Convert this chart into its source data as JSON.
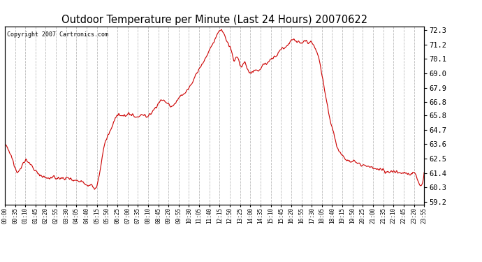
{
  "title": "Outdoor Temperature per Minute (Last 24 Hours) 20070622",
  "copyright": "Copyright 2007 Cartronics.com",
  "line_color": "#cc0000",
  "bg_color": "#ffffff",
  "plot_bg_color": "#ffffff",
  "grid_color": "#bbbbbb",
  "title_fontsize": 11,
  "yticks": [
    59.2,
    60.3,
    61.4,
    62.5,
    63.6,
    64.7,
    65.8,
    66.8,
    67.9,
    69.0,
    70.1,
    71.2,
    72.3
  ],
  "ylim": [
    59.0,
    72.6
  ],
  "xtick_labels": [
    "00:00",
    "00:35",
    "01:10",
    "01:45",
    "02:20",
    "02:55",
    "03:30",
    "04:05",
    "04:40",
    "05:15",
    "05:50",
    "06:25",
    "07:00",
    "07:35",
    "08:10",
    "08:45",
    "09:20",
    "09:55",
    "10:30",
    "11:05",
    "11:40",
    "12:15",
    "12:50",
    "13:25",
    "14:00",
    "14:35",
    "15:10",
    "15:45",
    "16:20",
    "16:55",
    "17:30",
    "18:05",
    "18:40",
    "19:15",
    "19:50",
    "20:25",
    "21:00",
    "21:35",
    "22:10",
    "22:45",
    "23:20",
    "23:55"
  ],
  "ctrl_hours": [
    0,
    0.25,
    0.5,
    0.75,
    1.0,
    1.2,
    1.4,
    1.6,
    1.8,
    2.0,
    2.2,
    2.5,
    2.8,
    3.0,
    3.3,
    3.6,
    3.9,
    4.2,
    4.5,
    4.7,
    5.0,
    5.25,
    5.5,
    5.7,
    6.0,
    6.3,
    6.5,
    6.7,
    7.0,
    7.3,
    7.6,
    7.9,
    8.0,
    8.2,
    8.5,
    8.7,
    9.0,
    9.2,
    9.5,
    9.8,
    10.0,
    10.3,
    10.6,
    10.9,
    11.2,
    11.5,
    11.8,
    12.0,
    12.1,
    12.2,
    12.4,
    12.6,
    12.8,
    13.0,
    13.1,
    13.3,
    13.5,
    13.7,
    14.0,
    14.3,
    14.5,
    14.7,
    15.0,
    15.2,
    15.4,
    15.6,
    15.8,
    16.0,
    16.2,
    16.3,
    16.4,
    16.5,
    16.6,
    16.8,
    17.0,
    17.2,
    17.4,
    17.5,
    17.6,
    17.7,
    17.8,
    18.0,
    18.2,
    18.4,
    18.6,
    18.8,
    19.0,
    19.2,
    19.5,
    19.8,
    20.0,
    20.3,
    20.6,
    20.9,
    21.0,
    21.2,
    21.5,
    21.8,
    22.0,
    22.2,
    22.4,
    22.6,
    22.8,
    23.0,
    23.2,
    23.5,
    23.8,
    24.0
  ],
  "ctrl_temps": [
    63.6,
    63.0,
    62.2,
    61.5,
    62.0,
    62.4,
    62.1,
    61.8,
    61.5,
    61.3,
    61.1,
    61.0,
    61.05,
    61.0,
    61.0,
    61.0,
    60.9,
    60.8,
    60.7,
    60.5,
    60.4,
    60.3,
    62.0,
    63.5,
    64.5,
    65.5,
    65.8,
    65.7,
    65.9,
    65.8,
    65.7,
    65.85,
    65.8,
    65.7,
    66.2,
    66.5,
    67.0,
    66.8,
    66.5,
    66.8,
    67.2,
    67.5,
    68.0,
    68.8,
    69.5,
    70.2,
    71.0,
    71.5,
    71.8,
    72.1,
    72.3,
    71.8,
    71.2,
    70.5,
    70.0,
    70.3,
    69.5,
    69.8,
    69.0,
    69.3,
    69.2,
    69.5,
    69.8,
    70.0,
    70.2,
    70.5,
    70.8,
    71.0,
    71.2,
    71.4,
    71.5,
    71.6,
    71.5,
    71.4,
    71.3,
    71.5,
    71.4,
    71.5,
    71.3,
    71.1,
    70.8,
    70.0,
    68.5,
    67.0,
    65.5,
    64.5,
    63.5,
    63.0,
    62.5,
    62.3,
    62.3,
    62.1,
    62.0,
    61.8,
    61.8,
    61.7,
    61.6,
    61.5,
    61.5,
    61.5,
    61.5,
    61.4,
    61.4,
    61.4,
    61.3,
    61.3,
    60.4,
    61.4
  ]
}
